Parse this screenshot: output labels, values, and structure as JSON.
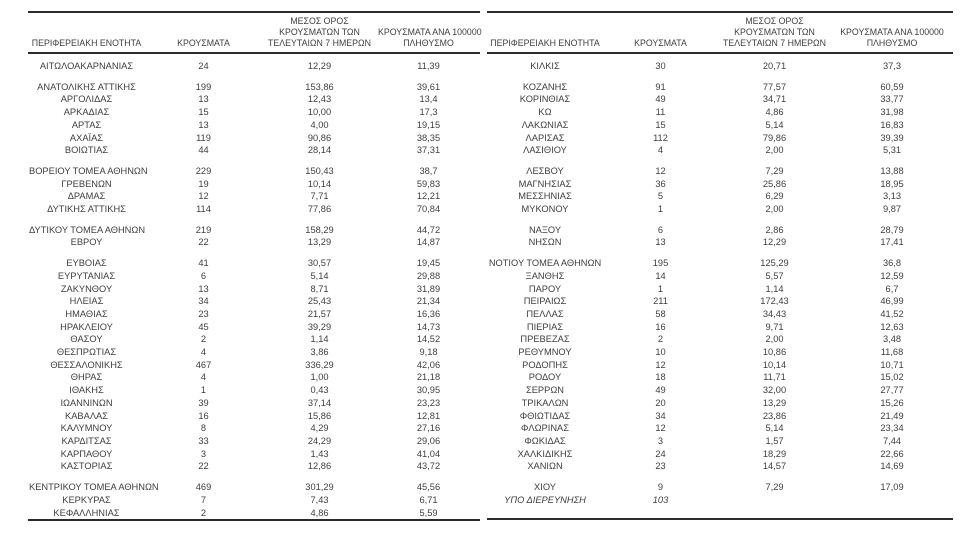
{
  "table": {
    "headers": {
      "region": "ΠΕΡΙΦΕΡΕΙΑΚΗ ΕΝΟΤΗΤΑ",
      "cases": "ΚΡΟΥΣΜΑΤΑ",
      "avg7_lines": [
        "ΜΕΣΟΣ ΟΡΟΣ",
        "ΚΡΟΥΣΜΑΤΩΝ ΤΩΝ",
        "ΤΕΛΕΥΤΑΙΩΝ 7 ΗΜΕΡΩΝ"
      ],
      "per100k_lines": [
        "ΚΡΟΥΣΜΑΤΑ ΑΝΑ 100000",
        "ΠΛΗΘΥΣΜΟ"
      ]
    },
    "rows": [
      {
        "left": {
          "values": [
            "ΑΙΤΩΛΟΑΚΑΡΝΑΝΙΑΣ",
            "24",
            "12,29",
            "11,39"
          ]
        },
        "right": {
          "values": [
            "ΚΙΛΚΙΣ",
            "30",
            "20,71",
            "37,3"
          ]
        },
        "gap_after": true
      },
      {
        "left": {
          "values": [
            "ΑΝΑΤΟΛΙΚΗΣ ΑΤΤΙΚΗΣ",
            "199",
            "153,86",
            "39,61"
          ]
        },
        "right": {
          "values": [
            "ΚΟΖΑΝΗΣ",
            "91",
            "77,57",
            "60,59"
          ]
        }
      },
      {
        "left": {
          "values": [
            "ΑΡΓΟΛΙΔΑΣ",
            "13",
            "12,43",
            "13,4"
          ]
        },
        "right": {
          "values": [
            "ΚΟΡΙΝΘΙΑΣ",
            "49",
            "34,71",
            "33,77"
          ]
        }
      },
      {
        "left": {
          "values": [
            "ΑΡΚΑΔΙΑΣ",
            "15",
            "10,00",
            "17,3"
          ]
        },
        "right": {
          "values": [
            "ΚΩ",
            "11",
            "4,86",
            "31,98"
          ]
        }
      },
      {
        "left": {
          "values": [
            "ΑΡΤΑΣ",
            "13",
            "4,00",
            "19,15"
          ]
        },
        "right": {
          "values": [
            "ΛΑΚΩΝΙΑΣ",
            "15",
            "5,14",
            "16,83"
          ]
        }
      },
      {
        "left": {
          "values": [
            "ΑΧΑΪΑΣ",
            "119",
            "90,86",
            "38,35"
          ]
        },
        "right": {
          "values": [
            "ΛΑΡΙΣΑΣ",
            "112",
            "79,86",
            "39,39"
          ]
        }
      },
      {
        "left": {
          "values": [
            "ΒΟΙΩΤΙΑΣ",
            "44",
            "28,14",
            "37,31"
          ]
        },
        "right": {
          "values": [
            "ΛΑΣΙΘΙΟΥ",
            "4",
            "2,00",
            "5,31"
          ]
        },
        "gap_after": true
      },
      {
        "left": {
          "values": [
            "ΒΟΡΕΙΟΥ ΤΟΜΕΑ ΑΘΗΝΩΝ",
            "229",
            "150,43",
            "38,7"
          ]
        },
        "right": {
          "values": [
            "ΛΕΣΒΟΥ",
            "12",
            "7,29",
            "13,88"
          ]
        }
      },
      {
        "left": {
          "values": [
            "ΓΡΕΒΕΝΩΝ",
            "19",
            "10,14",
            "59,83"
          ]
        },
        "right": {
          "values": [
            "ΜΑΓΝΗΣΙΑΣ",
            "36",
            "25,86",
            "18,95"
          ]
        }
      },
      {
        "left": {
          "values": [
            "ΔΡΑΜΑΣ",
            "12",
            "7,71",
            "12,21"
          ]
        },
        "right": {
          "values": [
            "ΜΕΣΣΗΝΙΑΣ",
            "5",
            "6,29",
            "3,13"
          ]
        }
      },
      {
        "left": {
          "values": [
            "ΔΥΤΙΚΗΣ ΑΤΤΙΚΗΣ",
            "114",
            "77,86",
            "70,84"
          ]
        },
        "right": {
          "values": [
            "ΜΥΚΟΝΟΥ",
            "1",
            "2,00",
            "9,87"
          ]
        },
        "gap_after": true
      },
      {
        "left": {
          "values": [
            "ΔΥΤΙΚΟΥ ΤΟΜΕΑ ΑΘΗΝΩΝ",
            "219",
            "158,29",
            "44,72"
          ]
        },
        "right": {
          "values": [
            "ΝΑΞΟΥ",
            "6",
            "2,86",
            "28,79"
          ]
        }
      },
      {
        "left": {
          "values": [
            "ΕΒΡΟΥ",
            "22",
            "13,29",
            "14,87"
          ]
        },
        "right": {
          "values": [
            "ΝΗΣΩΝ",
            "13",
            "12,29",
            "17,41"
          ]
        },
        "gap_after": true
      },
      {
        "left": {
          "values": [
            "ΕΥΒΟΙΑΣ",
            "41",
            "30,57",
            "19,45"
          ]
        },
        "right": {
          "values": [
            "ΝΟΤΙΟΥ ΤΟΜΕΑ ΑΘΗΝΩΝ",
            "195",
            "125,29",
            "36,8"
          ]
        }
      },
      {
        "left": {
          "values": [
            "ΕΥΡΥΤΑΝΙΑΣ",
            "6",
            "5,14",
            "29,88"
          ]
        },
        "right": {
          "values": [
            "ΞΑΝΘΗΣ",
            "14",
            "5,57",
            "12,59"
          ]
        }
      },
      {
        "left": {
          "values": [
            "ΖΑΚΥΝΘΟΥ",
            "13",
            "8,71",
            "31,89"
          ]
        },
        "right": {
          "values": [
            "ΠΑΡΟΥ",
            "1",
            "1,14",
            "6,7"
          ]
        }
      },
      {
        "left": {
          "values": [
            "ΗΛΕΙΑΣ",
            "34",
            "25,43",
            "21,34"
          ]
        },
        "right": {
          "values": [
            "ΠΕΙΡΑΙΩΣ",
            "211",
            "172,43",
            "46,99"
          ]
        }
      },
      {
        "left": {
          "values": [
            "ΗΜΑΘΙΑΣ",
            "23",
            "21,57",
            "16,36"
          ]
        },
        "right": {
          "values": [
            "ΠΕΛΛΑΣ",
            "58",
            "34,43",
            "41,52"
          ]
        }
      },
      {
        "left": {
          "values": [
            "ΗΡΑΚΛΕΙΟΥ",
            "45",
            "39,29",
            "14,73"
          ]
        },
        "right": {
          "values": [
            "ΠΙΕΡΙΑΣ",
            "16",
            "9,71",
            "12,63"
          ]
        }
      },
      {
        "left": {
          "values": [
            "ΘΑΣΟΥ",
            "2",
            "1,14",
            "14,52"
          ]
        },
        "right": {
          "values": [
            "ΠΡΕΒΕΖΑΣ",
            "2",
            "2,00",
            "3,48"
          ]
        }
      },
      {
        "left": {
          "values": [
            "ΘΕΣΠΡΩΤΙΑΣ",
            "4",
            "3,86",
            "9,18"
          ]
        },
        "right": {
          "values": [
            "ΡΕΘΥΜΝΟΥ",
            "10",
            "10,86",
            "11,68"
          ]
        }
      },
      {
        "left": {
          "values": [
            "ΘΕΣΣΑΛΟΝΙΚΗΣ",
            "467",
            "336,29",
            "42,06"
          ]
        },
        "right": {
          "values": [
            "ΡΟΔΟΠΗΣ",
            "12",
            "10,14",
            "10,71"
          ]
        }
      },
      {
        "left": {
          "values": [
            "ΘΗΡΑΣ",
            "4",
            "1,00",
            "21,18"
          ]
        },
        "right": {
          "values": [
            "ΡΟΔΟΥ",
            "18",
            "11,71",
            "15,02"
          ]
        }
      },
      {
        "left": {
          "values": [
            "ΙΘΑΚΗΣ",
            "1",
            "0,43",
            "30,95"
          ]
        },
        "right": {
          "values": [
            "ΣΕΡΡΩΝ",
            "49",
            "32,00",
            "27,77"
          ]
        }
      },
      {
        "left": {
          "values": [
            "ΙΩΑΝΝΙΝΩΝ",
            "39",
            "37,14",
            "23,23"
          ]
        },
        "right": {
          "values": [
            "ΤΡΙΚΑΛΩΝ",
            "20",
            "13,29",
            "15,26"
          ]
        }
      },
      {
        "left": {
          "values": [
            "ΚΑΒΑΛΑΣ",
            "16",
            "15,86",
            "12,81"
          ]
        },
        "right": {
          "values": [
            "ΦΘΙΩΤΙΔΑΣ",
            "34",
            "23,86",
            "21,49"
          ]
        }
      },
      {
        "left": {
          "values": [
            "ΚΑΛΥΜΝΟΥ",
            "8",
            "4,29",
            "27,16"
          ]
        },
        "right": {
          "values": [
            "ΦΛΩΡΙΝΑΣ",
            "12",
            "5,14",
            "23,34"
          ]
        }
      },
      {
        "left": {
          "values": [
            "ΚΑΡΔΙΤΣΑΣ",
            "33",
            "24,29",
            "29,06"
          ]
        },
        "right": {
          "values": [
            "ΦΩΚΙΔΑΣ",
            "3",
            "1,57",
            "7,44"
          ]
        }
      },
      {
        "left": {
          "values": [
            "ΚΑΡΠΑΘΟΥ",
            "3",
            "1,43",
            "41,04"
          ]
        },
        "right": {
          "values": [
            "ΧΑΛΚΙΔΙΚΗΣ",
            "24",
            "18,29",
            "22,66"
          ]
        }
      },
      {
        "left": {
          "values": [
            "ΚΑΣΤΟΡΙΑΣ",
            "22",
            "12,86",
            "43,72"
          ]
        },
        "right": {
          "values": [
            "ΧΑΝΙΩΝ",
            "23",
            "14,57",
            "14,69"
          ]
        },
        "gap_after": true
      },
      {
        "left": {
          "values": [
            "ΚΕΝΤΡΙΚΟΥ ΤΟΜΕΑ ΑΘΗΝΩΝ",
            "469",
            "301,29",
            "45,56"
          ]
        },
        "right": {
          "values": [
            "ΧΙΟΥ",
            "9",
            "7,29",
            "17,09"
          ]
        }
      },
      {
        "left": {
          "values": [
            "ΚΕΡΚΥΡΑΣ",
            "7",
            "7,43",
            "6,71"
          ]
        },
        "right": {
          "values": [
            "ΥΠΟ ΔΙΕΡΕΥΝΗΣΗ",
            "103",
            "",
            ""
          ],
          "italic": true
        }
      },
      {
        "left": {
          "values": [
            "ΚΕΦΑΛΛΗΝΙΑΣ",
            "2",
            "4,86",
            "5,59"
          ]
        },
        "right": {
          "values": [
            "",
            "",
            "",
            ""
          ]
        }
      }
    ]
  }
}
